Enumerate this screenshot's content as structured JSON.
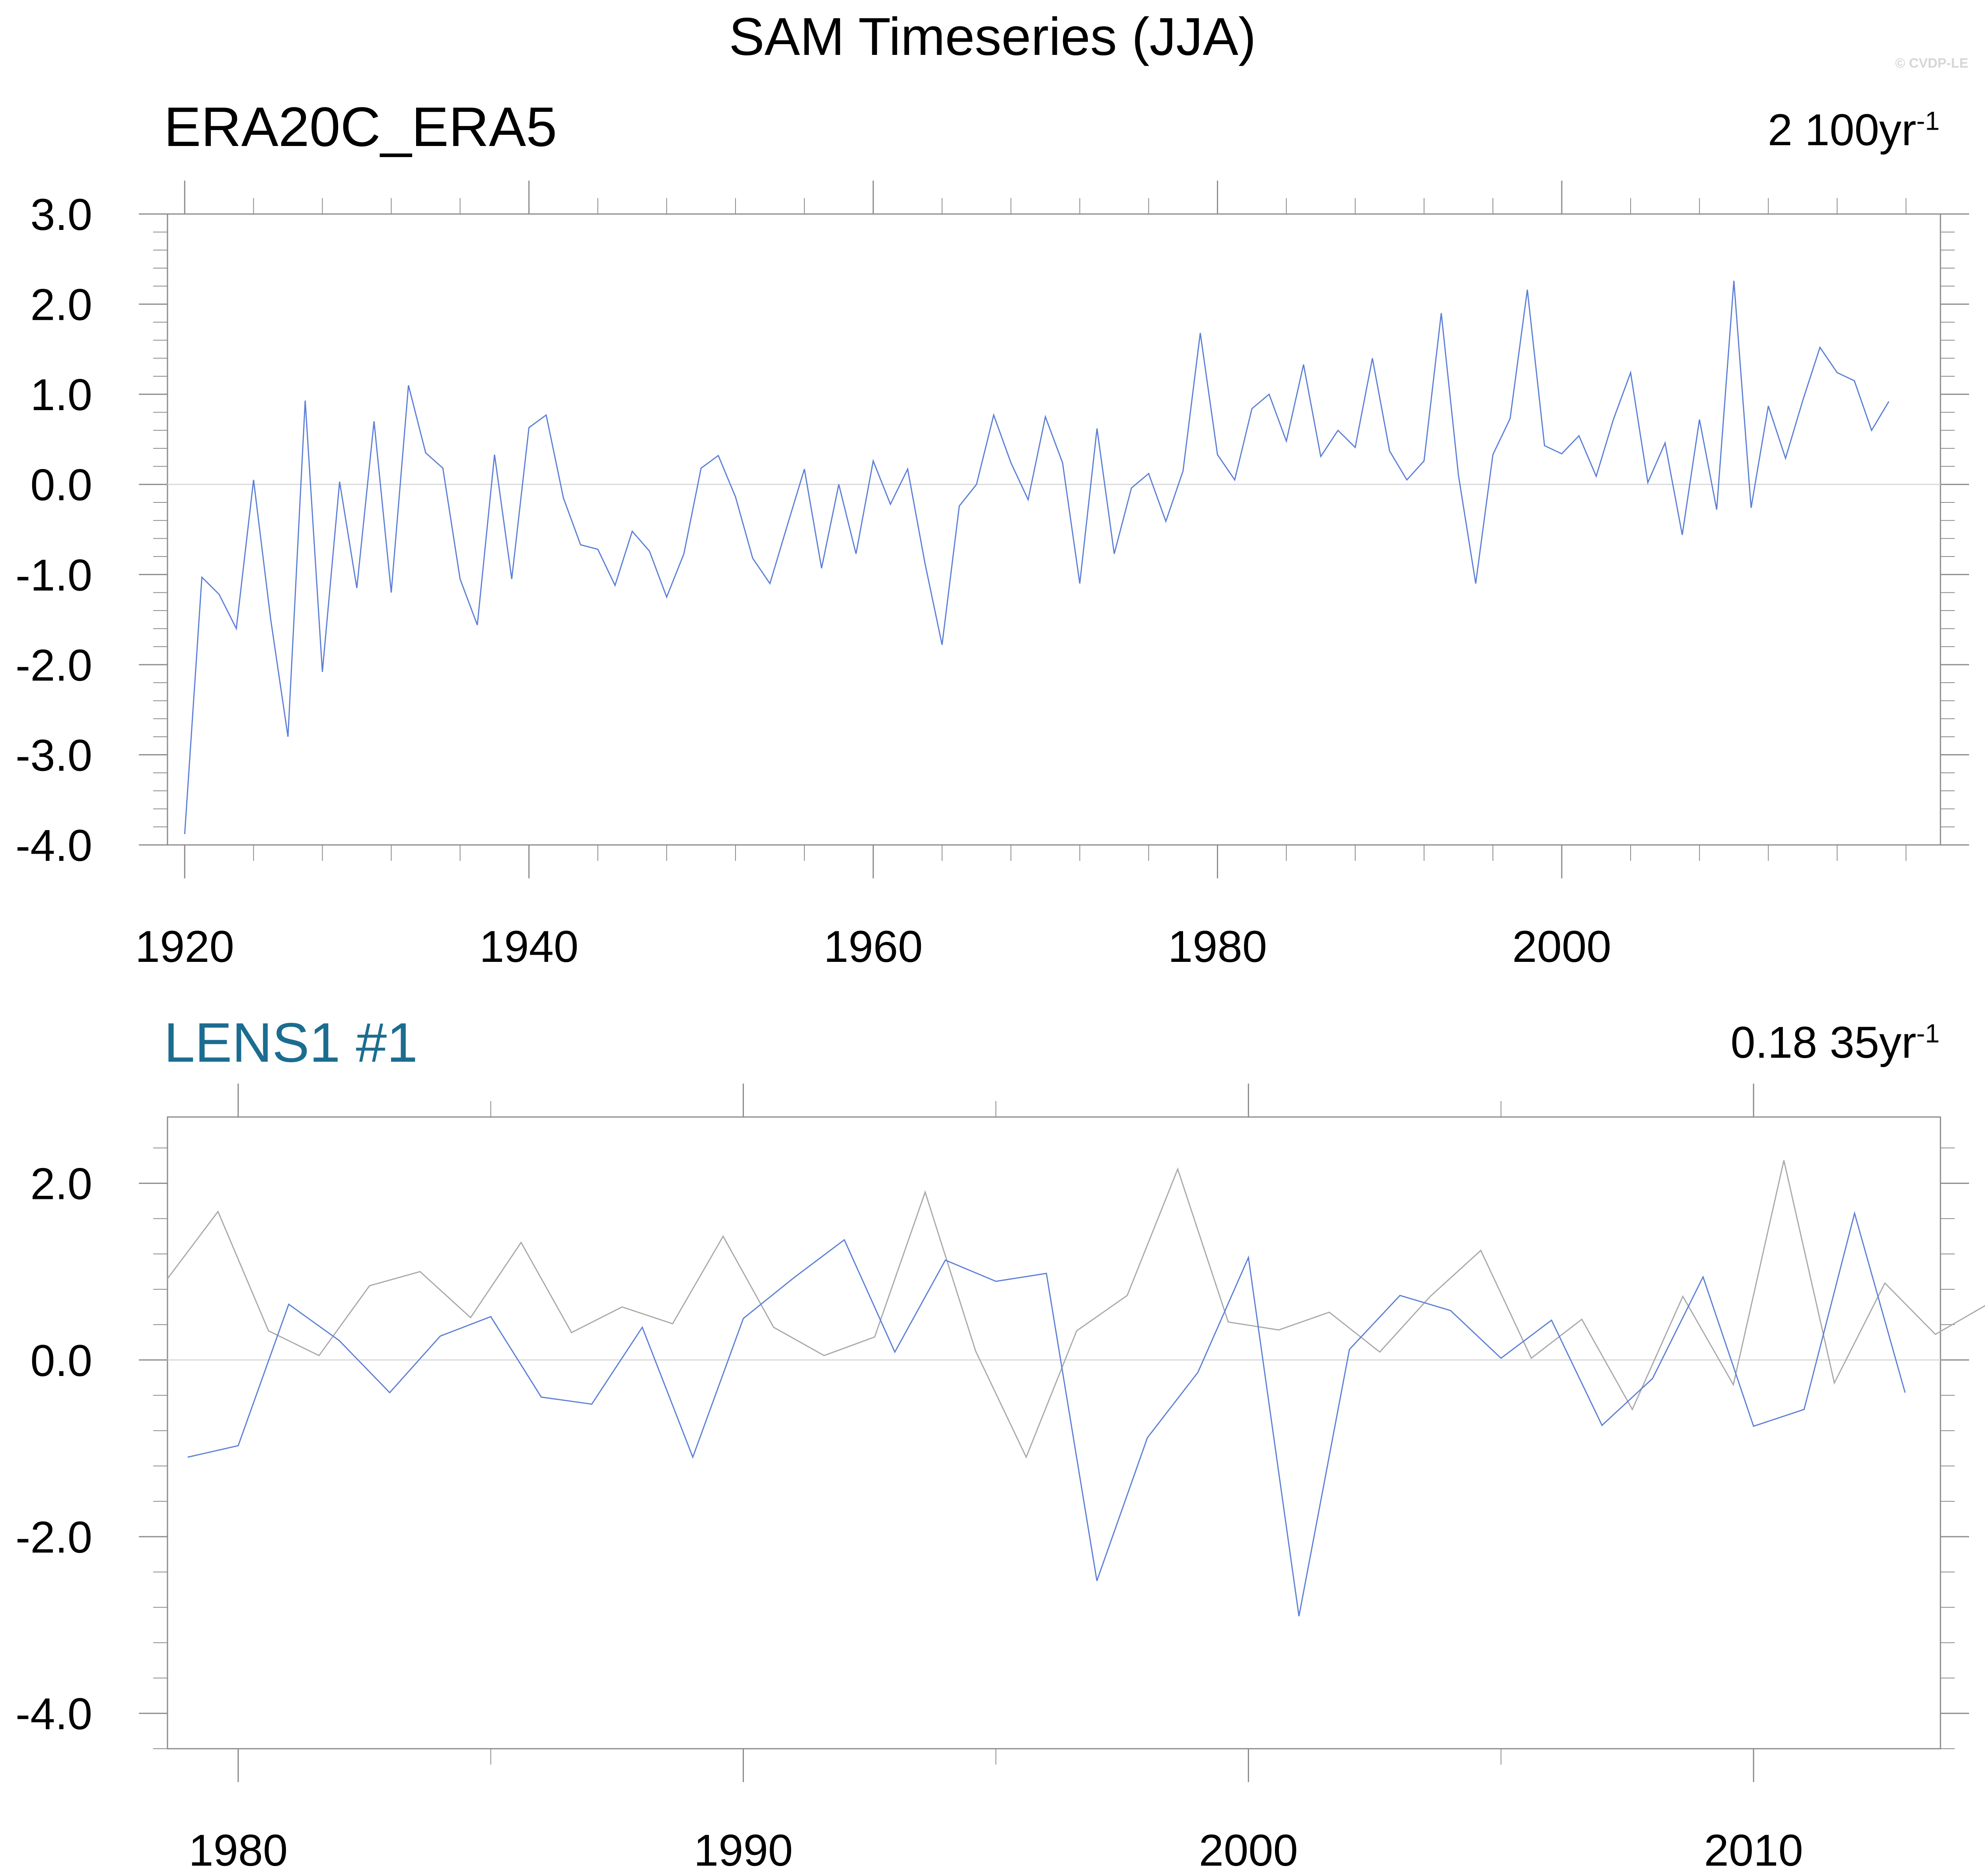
{
  "title": "SAM Timeseries (JJA)",
  "copyright": "© CVDP-LE",
  "chart_data": [
    {
      "type": "line",
      "panel_title": "ERA20C_ERA5",
      "trend_value": "2",
      "trend_period": "100yr",
      "trend_exp": "-1",
      "xlim": [
        1919,
        2022
      ],
      "ylim": [
        -4,
        3
      ],
      "x_ticks": [
        1920,
        1940,
        1960,
        1980,
        2000
      ],
      "x_tick_labels": [
        "1920",
        "1940",
        "1960",
        "1980",
        "2000"
      ],
      "y_ticks": [
        -4,
        -3,
        -2,
        -1,
        0,
        1,
        2,
        3
      ],
      "y_tick_labels": [
        "-4.0",
        "-3.0",
        "-2.0",
        "-1.0",
        "0.0",
        "1.0",
        "2.0",
        "3.0"
      ],
      "zero_line": true,
      "series": [
        {
          "color": "#5c7fd6",
          "x_start": 1920,
          "values": [
            -3.88,
            -1.03,
            -1.22,
            -1.6,
            0.05,
            -1.5,
            -2.8,
            0.93,
            -2.08,
            0.03,
            -1.15,
            0.7,
            -1.2,
            1.1,
            0.35,
            0.18,
            -1.05,
            -1.56,
            0.33,
            -1.05,
            0.63,
            0.77,
            -0.15,
            -0.67,
            -0.72,
            -1.12,
            -0.52,
            -0.74,
            -1.25,
            -0.77,
            0.18,
            0.32,
            -0.14,
            -0.82,
            -1.1,
            -0.46,
            0.17,
            -0.93,
            0.0,
            -0.77,
            0.26,
            -0.22,
            0.17,
            -0.87,
            -1.78,
            -0.24,
            0.0,
            0.77,
            0.24,
            -0.17,
            0.75,
            0.24,
            -1.1,
            0.62,
            -0.77,
            -0.04,
            0.12,
            -0.41,
            0.15,
            1.68,
            0.33,
            0.05,
            0.84,
            1.0,
            0.48,
            1.33,
            0.31,
            0.6,
            0.41,
            1.4,
            0.37,
            0.05,
            0.26,
            1.9,
            0.1,
            -1.1,
            0.33,
            0.73,
            2.16,
            0.43,
            0.34,
            0.54,
            0.09,
            0.72,
            1.24,
            0.02,
            0.46,
            -0.56,
            0.72,
            -0.28,
            2.26,
            -0.26,
            0.87,
            0.29,
            0.93,
            1.52,
            1.24,
            1.15,
            0.6,
            0.92
          ]
        }
      ]
    },
    {
      "type": "line",
      "panel_title": "LENS1 #1",
      "trend_value": "0.18",
      "trend_period": "35yr",
      "trend_exp": "-1",
      "xlim": [
        1978.6,
        2013.7
      ],
      "ylim": [
        -4.4,
        2.75
      ],
      "x_ticks": [
        1980,
        1990,
        2000,
        2010
      ],
      "x_tick_labels": [
        "1980",
        "1990",
        "2000",
        "2010"
      ],
      "y_ticks": [
        -4,
        -2,
        0,
        2
      ],
      "y_tick_labels": [
        "-4.0",
        "-2.0",
        "0.0",
        "2.0"
      ],
      "zero_line": true,
      "series": [
        {
          "color": "#a9a9a9",
          "x_start": 1978.6,
          "x_step": 1,
          "values": [
            0.92,
            1.68,
            0.33,
            0.05,
            0.84,
            1.0,
            0.48,
            1.33,
            0.31,
            0.6,
            0.41,
            1.4,
            0.37,
            0.05,
            0.26,
            1.9,
            0.1,
            -1.1,
            0.33,
            0.73,
            2.16,
            0.43,
            0.34,
            0.54,
            0.09,
            0.72,
            1.24,
            0.02,
            0.46,
            -0.56,
            0.72,
            -0.28,
            2.26,
            -0.26,
            0.87,
            0.29,
            0.62
          ]
        },
        {
          "color": "#5c7fd6",
          "x_start": 1979,
          "x_step": 1,
          "values": [
            -1.1,
            -0.97,
            0.63,
            0.22,
            -0.37,
            0.27,
            0.49,
            -0.42,
            -0.5,
            0.37,
            -1.1,
            0.47,
            0.93,
            1.36,
            0.09,
            1.13,
            0.89,
            0.98,
            -2.5,
            -0.88,
            -0.14,
            1.16,
            -2.9,
            0.12,
            0.73,
            0.56,
            0.02,
            0.45,
            -0.74,
            -0.21,
            0.94,
            -0.75,
            -0.56,
            1.66,
            -0.37
          ]
        }
      ]
    }
  ]
}
